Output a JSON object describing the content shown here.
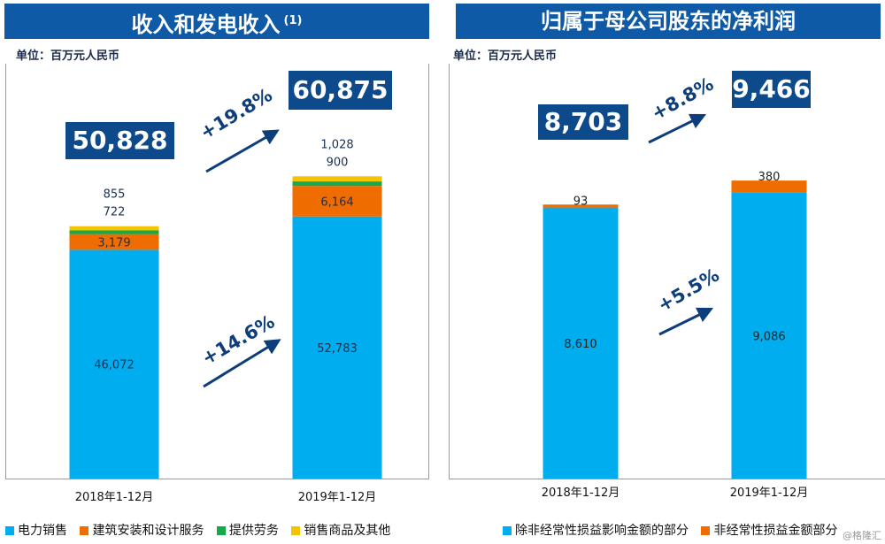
{
  "left_panel": {
    "title": "收入和发电收入",
    "title_note": "(1)",
    "unit": "单位：百万元人民币",
    "total_2018": "50,828",
    "total_2019": "60,875",
    "growth_total": "+19.8%",
    "growth_power": "+14.6%",
    "legend": [
      {
        "label": "电力销售",
        "color": "#00adef"
      },
      {
        "label": "建筑安装和设计服务",
        "color": "#ef6c00"
      },
      {
        "label": "提供劳务",
        "color": "#14a94a"
      },
      {
        "label": "销售商品及其他",
        "color": "#f5c400"
      }
    ]
  },
  "right_panel": {
    "title": "归属于母公司股东的净利润",
    "unit": "单位：百万元人民币",
    "total_2018": "8,703",
    "total_2019": "9,466",
    "growth_total": "+8.8%",
    "growth_core": "+5.5%",
    "legend": [
      {
        "label": "除非经常性损益影响金额的部分",
        "color": "#00adef"
      },
      {
        "label": "非经常性损益金额部分",
        "color": "#ef6c00"
      }
    ]
  },
  "watermark": "@格隆汇",
  "chart_data": [
    {
      "type": "bar",
      "stacked": true,
      "title": "收入和发电收入",
      "categories": [
        "2018年1-12月",
        "2019年1-12月"
      ],
      "series": [
        {
          "name": "电力销售",
          "color": "#00adef",
          "values": [
            46072,
            52783
          ],
          "labels": [
            "46,072",
            "52,783"
          ]
        },
        {
          "name": "建筑安装和设计服务",
          "color": "#ef6c00",
          "values": [
            3179,
            6164
          ],
          "labels": [
            "3,179",
            "6,164"
          ]
        },
        {
          "name": "提供劳务",
          "color": "#14a94a",
          "values": [
            722,
            900
          ],
          "labels": [
            "722",
            "900"
          ]
        },
        {
          "name": "销售商品及其他",
          "color": "#f5c400",
          "values": [
            855,
            1028
          ],
          "labels": [
            "855",
            "1,028"
          ]
        }
      ],
      "ylim": [
        0,
        62000
      ]
    },
    {
      "type": "bar",
      "stacked": true,
      "title": "归属于母公司股东的净利润",
      "categories": [
        "2018年1-12月",
        "2019年1-12月"
      ],
      "series": [
        {
          "name": "除非经常性损益影响金额的部分",
          "color": "#00adef",
          "values": [
            8610,
            9086
          ],
          "labels": [
            "8,610",
            "9,086"
          ]
        },
        {
          "name": "非经常性损益金额部分",
          "color": "#ef6c00",
          "values": [
            93,
            380
          ],
          "labels": [
            "93",
            "380"
          ]
        }
      ],
      "ylim": [
        0,
        10200
      ]
    }
  ]
}
